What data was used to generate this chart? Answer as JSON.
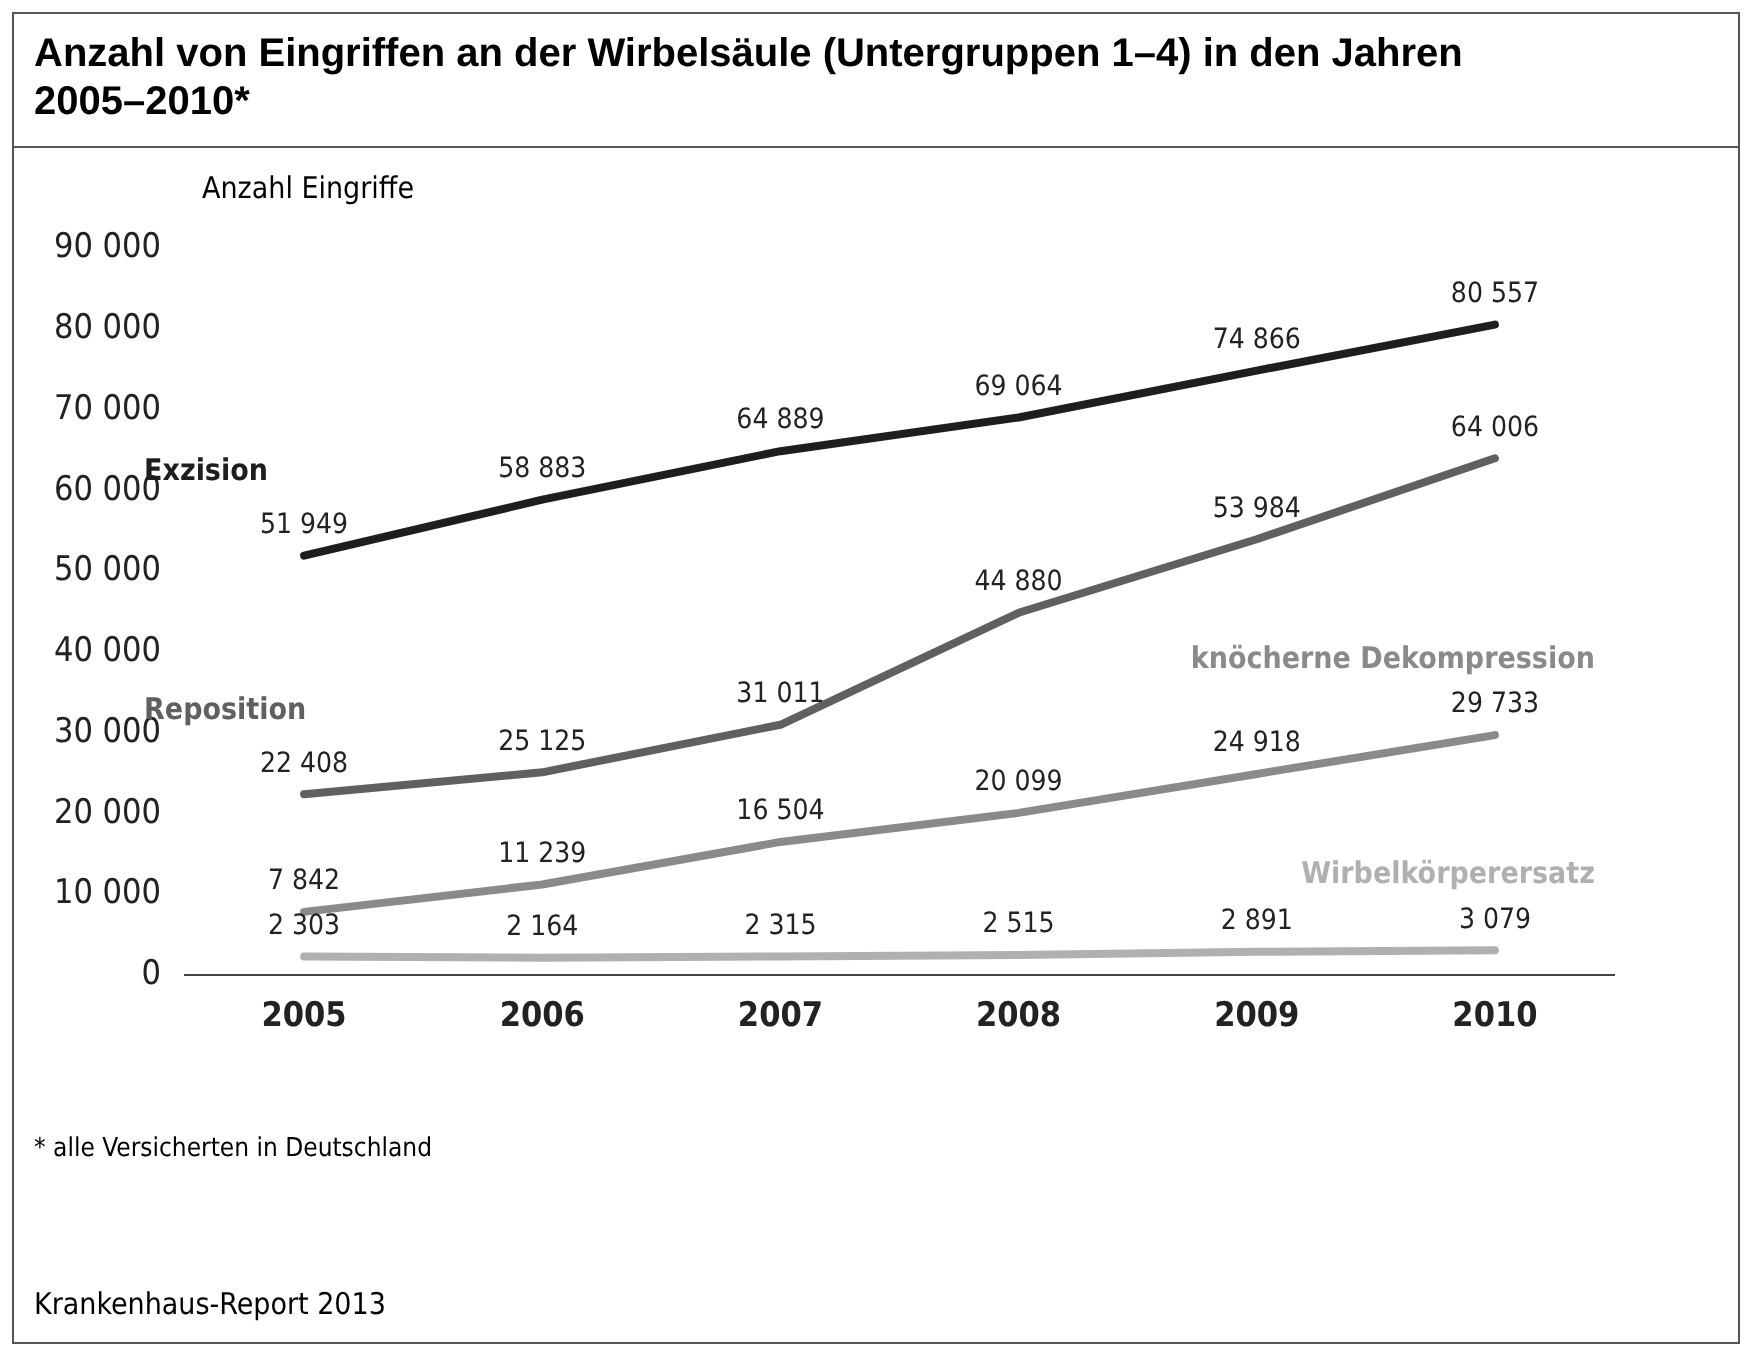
{
  "chart_data": {
    "type": "line",
    "title": "Anzahl von Eingriffen an der Wirbelsäule (Untergruppen 1–4) in den Jahren 2005–2010*",
    "ylabel": "Anzahl Eingriffe",
    "categories": [
      "2005",
      "2006",
      "2007",
      "2008",
      "2009",
      "2010"
    ],
    "series": [
      {
        "name": "Exzision",
        "color": "#1e1e1e",
        "values": [
          51949,
          58883,
          64889,
          69064,
          74866,
          80557
        ],
        "value_labels": [
          "51 949",
          "58 883",
          "64 889",
          "69 064",
          "74 866",
          "80 557"
        ]
      },
      {
        "name": "Reposition",
        "color": "#606060",
        "values": [
          22408,
          25125,
          31011,
          44880,
          53984,
          64006
        ],
        "value_labels": [
          "22 408",
          "25 125",
          "31 011",
          "44 880",
          "53 984",
          "64 006"
        ]
      },
      {
        "name": "knöcherne Dekompression",
        "color": "#8a8a8a",
        "values": [
          7842,
          11239,
          16504,
          20099,
          24918,
          29733
        ],
        "value_labels": [
          "7 842",
          "11 239",
          "16 504",
          "20 099",
          "24 918",
          "29 733"
        ]
      },
      {
        "name": "Wirbelkörperersatz",
        "color": "#b0b0b0",
        "values": [
          2303,
          2164,
          2315,
          2515,
          2891,
          3079
        ],
        "value_labels": [
          "2 303",
          "2 164",
          "2 315",
          "2 515",
          "2 891",
          "3 079"
        ]
      }
    ],
    "ylim": [
      0,
      90000
    ],
    "yticks": [
      {
        "value": 0,
        "label": "0"
      },
      {
        "value": 10000,
        "label": "10 000"
      },
      {
        "value": 20000,
        "label": "20 000"
      },
      {
        "value": 30000,
        "label": "30 000"
      },
      {
        "value": 40000,
        "label": "40 000"
      },
      {
        "value": 50000,
        "label": "50 000"
      },
      {
        "value": 60000,
        "label": "60 000"
      },
      {
        "value": 70000,
        "label": "70 000"
      },
      {
        "value": 80000,
        "label": "80 000"
      },
      {
        "value": 90000,
        "label": "90 000"
      }
    ],
    "grid": false,
    "legend": false,
    "marker": "none",
    "line_style": "solid",
    "annotations": [
      "* alle Versicherten in Deutschland",
      "Krankenhaus-Report 2013"
    ]
  }
}
